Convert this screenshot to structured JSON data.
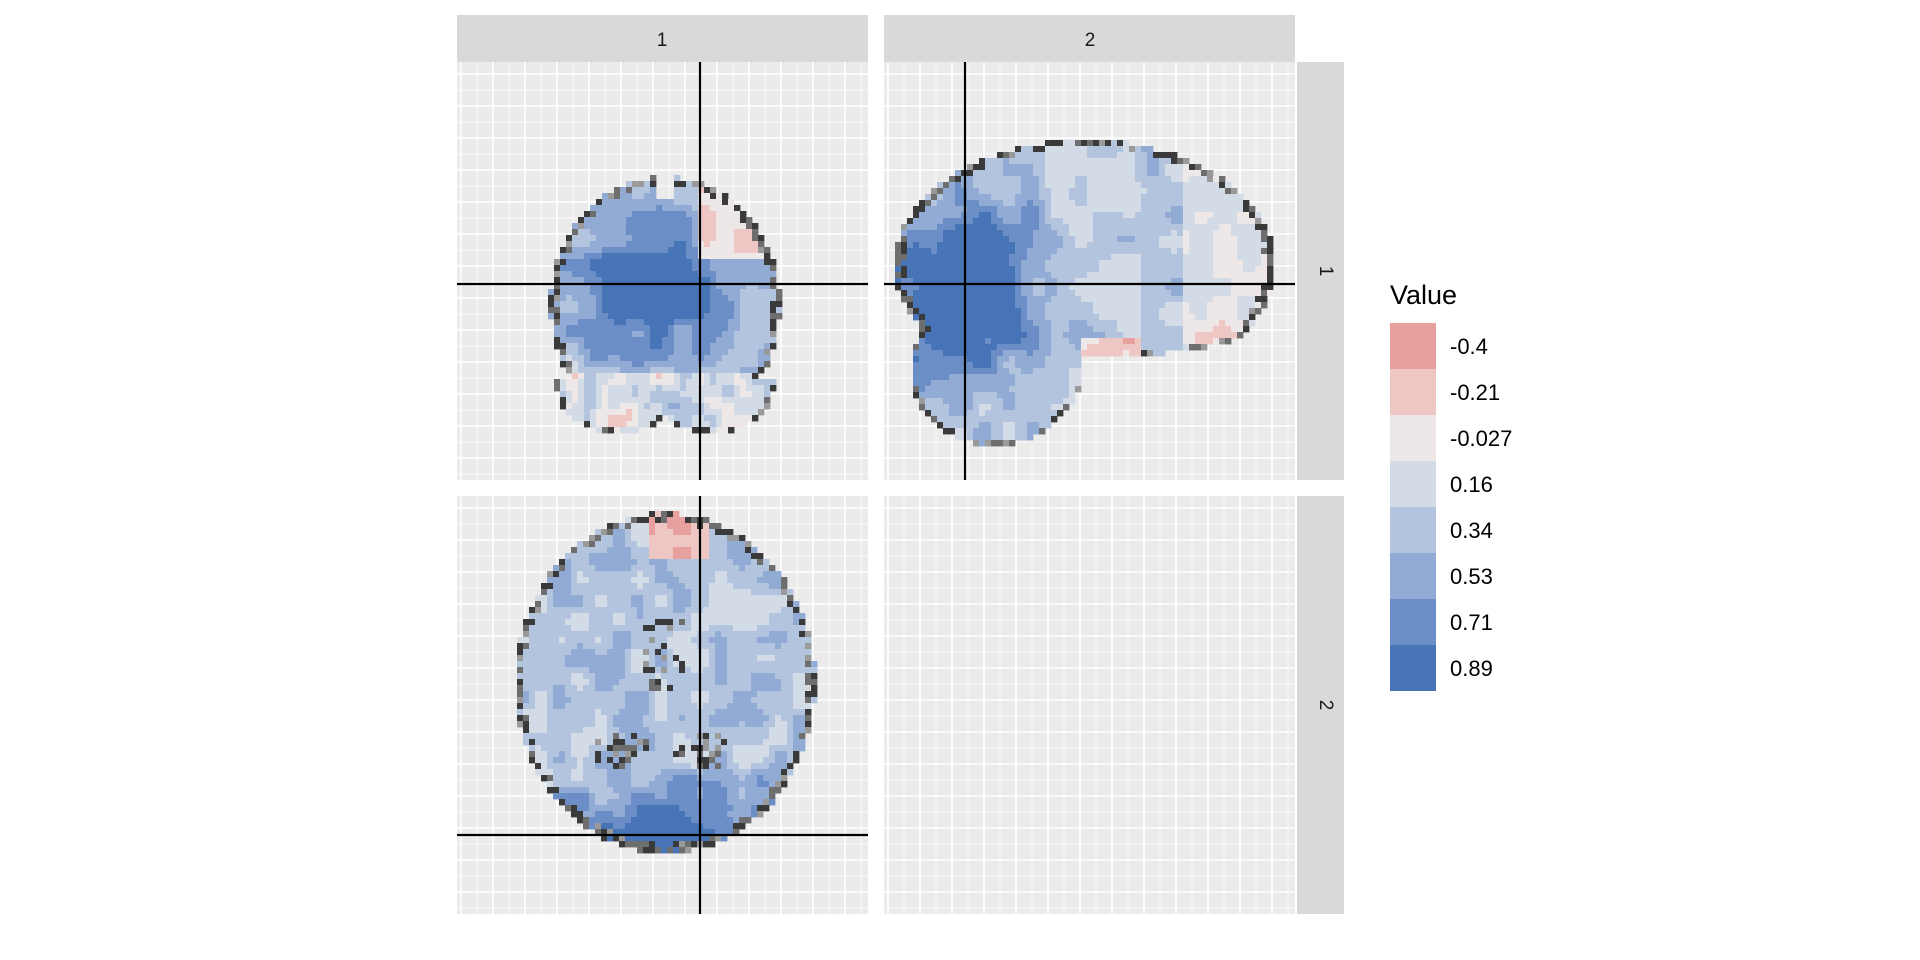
{
  "chart_data": {
    "type": "heatmap",
    "description_text": "",
    "facet_columns": [
      "1",
      "2"
    ],
    "facet_rows": [
      "1",
      "2"
    ],
    "panels": [
      {
        "col": "1",
        "row": "1",
        "view": "coronal",
        "crosshair": {
          "vertical": true,
          "horizontal": true
        }
      },
      {
        "col": "2",
        "row": "1",
        "view": "sagittal",
        "crosshair": {
          "vertical": true,
          "horizontal": true
        }
      },
      {
        "col": "1",
        "row": "2",
        "view": "axial",
        "crosshair": {
          "vertical": true,
          "horizontal": true
        }
      },
      {
        "col": "2",
        "row": "2",
        "view": "empty",
        "crosshair": {
          "vertical": false,
          "horizontal": false
        }
      }
    ],
    "legend": {
      "title": "Value",
      "position": "right",
      "entries": [
        {
          "label": "-0.4",
          "color": "#e8a09f"
        },
        {
          "label": "-0.21",
          "color": "#eec7c4"
        },
        {
          "label": "-0.027",
          "color": "#ede8e7"
        },
        {
          "label": "0.16",
          "color": "#d3dbe7"
        },
        {
          "label": "0.34",
          "color": "#b2c4de"
        },
        {
          "label": "0.53",
          "color": "#91abd4"
        },
        {
          "label": "0.71",
          "color": "#6c8ec6"
        },
        {
          "label": "0.89",
          "color": "#4674b6"
        }
      ]
    },
    "grid": true,
    "colors": {
      "panel_background": "#ebebeb",
      "grid_line": "#ffffff",
      "strip_background": "#d9d9d9",
      "crosshair": "#000000",
      "edge_dark": "#3a3a3a"
    }
  }
}
